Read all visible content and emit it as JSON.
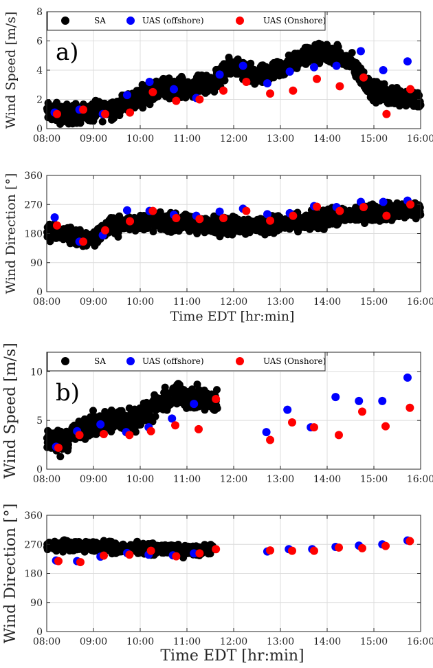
{
  "x_ticks": [
    "08:00",
    "09:00",
    "10:00",
    "11:00",
    "12:00",
    "13:00",
    "14:00",
    "15:00",
    "16:00"
  ],
  "legend": {
    "sa": "SA",
    "offshore": "UAS (offshore)",
    "onshore": "UAS (Onshore)"
  },
  "colors": {
    "sa": "#000000",
    "offshore": "#0000ff",
    "onshore": "#ff0000"
  },
  "chart_data": [
    {
      "type": "scatter",
      "panel_label": "a)",
      "ylabel": "Wind Speed [m/s]",
      "xlabel": "",
      "xlim": [
        8,
        16
      ],
      "ylim": [
        0,
        8
      ],
      "yticks": [
        0,
        2,
        4,
        6,
        8
      ],
      "grid": true,
      "legend_position": "top",
      "sa_trend": [
        [
          8.0,
          1.1
        ],
        [
          8.5,
          1.0
        ],
        [
          9.0,
          1.1
        ],
        [
          9.5,
          1.5
        ],
        [
          10.0,
          2.2
        ],
        [
          10.5,
          2.8
        ],
        [
          11.0,
          2.8
        ],
        [
          11.5,
          3.0
        ],
        [
          12.0,
          4.3
        ],
        [
          12.5,
          3.5
        ],
        [
          13.0,
          4.0
        ],
        [
          13.5,
          5.0
        ],
        [
          14.0,
          5.2
        ],
        [
          14.5,
          4.5
        ],
        [
          15.0,
          2.5
        ],
        [
          15.5,
          2.2
        ],
        [
          16.0,
          2.0
        ]
      ],
      "sa_spread": 0.5,
      "series": [
        {
          "name": "UAS (offshore)",
          "color": "offshore",
          "points": [
            [
              8.17,
              1.1
            ],
            [
              8.7,
              1.3
            ],
            [
              9.2,
              1.0
            ],
            [
              9.72,
              2.3
            ],
            [
              10.2,
              3.2
            ],
            [
              10.72,
              2.7
            ],
            [
              11.2,
              2.1
            ],
            [
              11.7,
              3.7
            ],
            [
              12.2,
              4.3
            ],
            [
              12.72,
              3.1
            ],
            [
              13.2,
              3.9
            ],
            [
              13.72,
              4.2
            ],
            [
              14.2,
              4.3
            ],
            [
              14.72,
              5.3
            ],
            [
              15.2,
              4.0
            ],
            [
              15.72,
              4.6
            ]
          ]
        },
        {
          "name": "UAS (Onshore)",
          "color": "onshore",
          "points": [
            [
              8.22,
              1.0
            ],
            [
              8.78,
              1.3
            ],
            [
              9.25,
              1.0
            ],
            [
              9.78,
              1.1
            ],
            [
              10.27,
              2.5
            ],
            [
              10.77,
              1.9
            ],
            [
              11.27,
              2.0
            ],
            [
              11.78,
              2.6
            ],
            [
              12.27,
              3.2
            ],
            [
              12.78,
              2.4
            ],
            [
              13.27,
              2.6
            ],
            [
              13.78,
              3.4
            ],
            [
              14.27,
              2.9
            ],
            [
              14.78,
              3.5
            ],
            [
              15.27,
              1.0
            ],
            [
              15.78,
              2.7
            ]
          ]
        }
      ]
    },
    {
      "type": "scatter",
      "ylabel": "Wind Direction [°]",
      "xlabel": "Time EDT [hr:min]",
      "xlim": [
        8,
        16
      ],
      "ylim": [
        0,
        360
      ],
      "yticks": [
        0,
        90,
        180,
        270,
        360
      ],
      "grid": true,
      "sa_trend": [
        [
          8.0,
          185
        ],
        [
          8.5,
          175
        ],
        [
          8.75,
          160
        ],
        [
          9.0,
          170
        ],
        [
          9.3,
          195
        ],
        [
          9.7,
          210
        ],
        [
          10.0,
          215
        ],
        [
          10.5,
          215
        ],
        [
          11.0,
          210
        ],
        [
          11.5,
          205
        ],
        [
          12.0,
          205
        ],
        [
          12.5,
          205
        ],
        [
          13.0,
          210
        ],
        [
          13.5,
          215
        ],
        [
          14.0,
          225
        ],
        [
          14.5,
          240
        ],
        [
          15.0,
          245
        ],
        [
          15.5,
          250
        ],
        [
          16.0,
          255
        ]
      ],
      "sa_spread": 20,
      "series": [
        {
          "name": "UAS (offshore)",
          "color": "offshore",
          "points": [
            [
              8.17,
              230
            ],
            [
              8.7,
              155
            ],
            [
              9.2,
              175
            ],
            [
              9.72,
              252
            ],
            [
              10.2,
              250
            ],
            [
              10.72,
              238
            ],
            [
              11.2,
              235
            ],
            [
              11.7,
              248
            ],
            [
              12.2,
              257
            ],
            [
              12.72,
              240
            ],
            [
              13.2,
              243
            ],
            [
              13.72,
              265
            ],
            [
              14.2,
              262
            ],
            [
              14.72,
              278
            ],
            [
              15.2,
              278
            ],
            [
              15.72,
              282
            ]
          ]
        },
        {
          "name": "UAS (Onshore)",
          "color": "onshore",
          "points": [
            [
              8.22,
              205
            ],
            [
              8.78,
              155
            ],
            [
              9.25,
              190
            ],
            [
              9.78,
              218
            ],
            [
              10.27,
              250
            ],
            [
              10.77,
              228
            ],
            [
              11.27,
              225
            ],
            [
              11.78,
              228
            ],
            [
              12.27,
              250
            ],
            [
              12.78,
              220
            ],
            [
              13.27,
              235
            ],
            [
              13.78,
              263
            ],
            [
              14.27,
              250
            ],
            [
              14.78,
              262
            ],
            [
              15.27,
              235
            ],
            [
              15.78,
              270
            ]
          ]
        }
      ]
    },
    {
      "type": "scatter",
      "panel_label": "b)",
      "ylabel": "Wind Speed [m/s]",
      "xlabel": "",
      "xlim": [
        8,
        16
      ],
      "ylim": [
        0,
        12
      ],
      "yticks": [
        0,
        5,
        10
      ],
      "grid": true,
      "legend_position": "top",
      "sa_range": [
        8.0,
        11.65
      ],
      "sa_trend": [
        [
          8.0,
          3.0
        ],
        [
          8.3,
          2.8
        ],
        [
          8.55,
          3.6
        ],
        [
          9.0,
          4.6
        ],
        [
          9.5,
          5.0
        ],
        [
          10.0,
          5.3
        ],
        [
          10.5,
          6.8
        ],
        [
          10.8,
          7.8
        ],
        [
          11.2,
          7.2
        ],
        [
          11.65,
          6.8
        ]
      ],
      "sa_spread": 0.9,
      "series": [
        {
          "name": "UAS (offshore)",
          "color": "offshore",
          "points": [
            [
              8.2,
              2.3
            ],
            [
              8.65,
              3.9
            ],
            [
              9.15,
              4.6
            ],
            [
              9.7,
              3.8
            ],
            [
              10.18,
              4.3
            ],
            [
              10.68,
              5.2
            ],
            [
              11.15,
              6.7
            ],
            [
              12.7,
              3.8
            ],
            [
              13.15,
              6.1
            ],
            [
              13.65,
              4.3
            ],
            [
              14.18,
              7.4
            ],
            [
              14.68,
              7.0
            ],
            [
              15.18,
              7.0
            ],
            [
              15.72,
              9.4
            ]
          ]
        },
        {
          "name": "UAS (Onshore)",
          "color": "onshore",
          "points": [
            [
              8.25,
              2.2
            ],
            [
              8.7,
              3.5
            ],
            [
              9.22,
              3.6
            ],
            [
              9.77,
              3.5
            ],
            [
              10.23,
              3.9
            ],
            [
              10.75,
              4.5
            ],
            [
              11.25,
              4.1
            ],
            [
              11.62,
              7.2
            ],
            [
              12.78,
              3.0
            ],
            [
              13.25,
              4.8
            ],
            [
              13.72,
              4.3
            ],
            [
              14.25,
              3.5
            ],
            [
              14.75,
              5.9
            ],
            [
              15.25,
              4.4
            ],
            [
              15.77,
              6.3
            ]
          ]
        }
      ]
    },
    {
      "type": "scatter",
      "ylabel": "Wind Direction [°]",
      "xlabel": "Time EDT [hr:min]",
      "xlim": [
        8,
        16
      ],
      "ylim": [
        0,
        360
      ],
      "yticks": [
        0,
        90,
        180,
        270,
        360
      ],
      "grid": true,
      "sa_range": [
        8.0,
        11.55
      ],
      "sa_trend": [
        [
          8.0,
          265
        ],
        [
          8.5,
          268
        ],
        [
          9.0,
          262
        ],
        [
          9.5,
          260
        ],
        [
          10.0,
          258
        ],
        [
          10.5,
          255
        ],
        [
          11.0,
          250
        ],
        [
          11.55,
          255
        ]
      ],
      "sa_spread": 12,
      "series": [
        {
          "name": "UAS (offshore)",
          "color": "offshore",
          "points": [
            [
              8.2,
              220
            ],
            [
              8.65,
              218
            ],
            [
              9.15,
              232
            ],
            [
              9.72,
              243
            ],
            [
              10.18,
              238
            ],
            [
              10.7,
              236
            ],
            [
              11.15,
              242
            ],
            [
              12.72,
              248
            ],
            [
              13.18,
              255
            ],
            [
              13.68,
              255
            ],
            [
              14.18,
              262
            ],
            [
              14.68,
              266
            ],
            [
              15.18,
              270
            ],
            [
              15.72,
              282
            ]
          ]
        },
        {
          "name": "UAS (Onshore)",
          "color": "onshore",
          "points": [
            [
              8.25,
              218
            ],
            [
              8.72,
              215
            ],
            [
              9.22,
              235
            ],
            [
              9.77,
              238
            ],
            [
              10.23,
              250
            ],
            [
              10.77,
              233
            ],
            [
              11.27,
              242
            ],
            [
              11.62,
              255
            ],
            [
              12.78,
              251
            ],
            [
              13.25,
              250
            ],
            [
              13.72,
              250
            ],
            [
              14.25,
              260
            ],
            [
              14.75,
              258
            ],
            [
              15.25,
              265
            ],
            [
              15.77,
              280
            ]
          ]
        }
      ]
    }
  ]
}
